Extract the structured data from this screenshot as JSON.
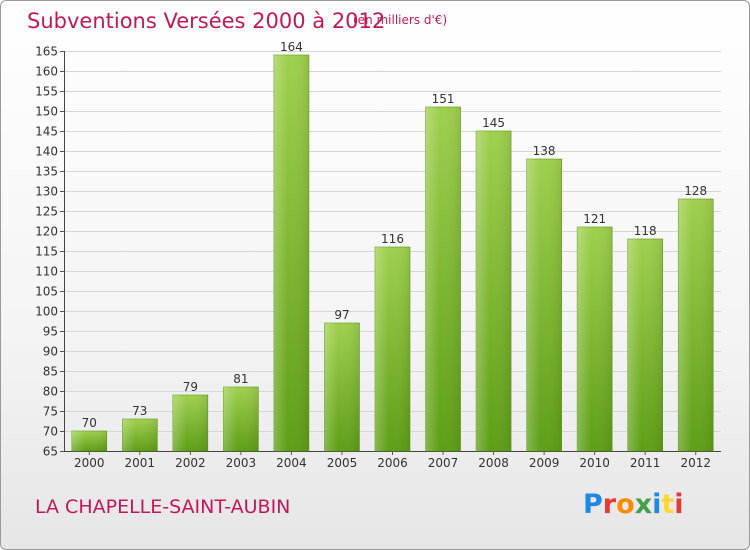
{
  "header": {
    "title": "Subventions Versées 2000 à 2012",
    "subtitle": "(en milliers d'€)"
  },
  "footer": {
    "commune": "LA CHAPELLE-SAINT-AUBIN",
    "logo_text": "Proxiti",
    "logo_colors": [
      "#1e88e5",
      "#e53935",
      "#fb8c00",
      "#43a047",
      "#1e88e5",
      "#fdd835",
      "#e53935"
    ]
  },
  "chart_data": {
    "type": "bar",
    "categories": [
      "2000",
      "2001",
      "2002",
      "2003",
      "2004",
      "2005",
      "2006",
      "2007",
      "2008",
      "2009",
      "2010",
      "2011",
      "2012"
    ],
    "values": [
      70,
      73,
      79,
      81,
      164,
      97,
      116,
      151,
      145,
      138,
      121,
      118,
      128
    ],
    "ylim": [
      65,
      165
    ],
    "yticks": [
      65,
      70,
      75,
      80,
      85,
      90,
      95,
      100,
      105,
      110,
      115,
      120,
      125,
      130,
      135,
      140,
      145,
      150,
      155,
      160,
      165
    ],
    "grid": true,
    "bar_color": "#7cb82f",
    "bar_color_light": "#9ccc4a"
  }
}
